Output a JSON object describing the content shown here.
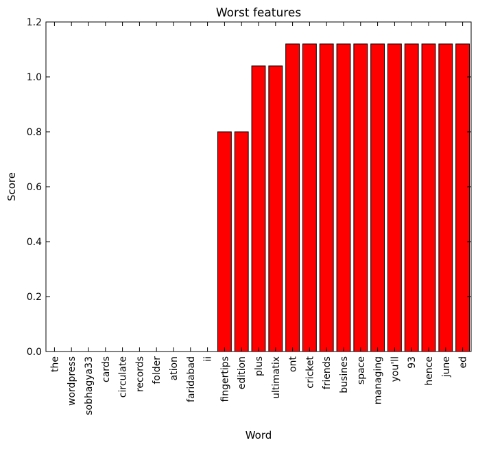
{
  "chart_data": {
    "type": "bar",
    "title": "Worst features",
    "xlabel": "Word",
    "ylabel": "Score",
    "ylim": [
      0,
      1.2
    ],
    "yticks": [
      "0.0",
      "0.2",
      "0.4",
      "0.6",
      "0.8",
      "1.0",
      "1.2"
    ],
    "bar_color": "#ff0000",
    "edge_color": "#000000",
    "grid": false,
    "categories": [
      "the",
      "wordpress",
      "sobhagya33",
      "cards",
      "circulate",
      "records",
      "folder",
      "ation",
      "faridabad",
      "ii",
      "fingertips",
      "edition",
      "plus",
      "ultimatix",
      "ont",
      "cricket",
      "friends",
      "busines",
      "space",
      "managing",
      "you'll",
      "93",
      "hence",
      "june",
      "ed"
    ],
    "values": [
      0,
      0,
      0,
      0,
      0,
      0,
      0,
      0,
      0,
      0,
      0.8,
      0.8,
      1.04,
      1.04,
      1.12,
      1.12,
      1.12,
      1.12,
      1.12,
      1.12,
      1.12,
      1.12,
      1.12,
      1.12,
      1.12
    ]
  }
}
